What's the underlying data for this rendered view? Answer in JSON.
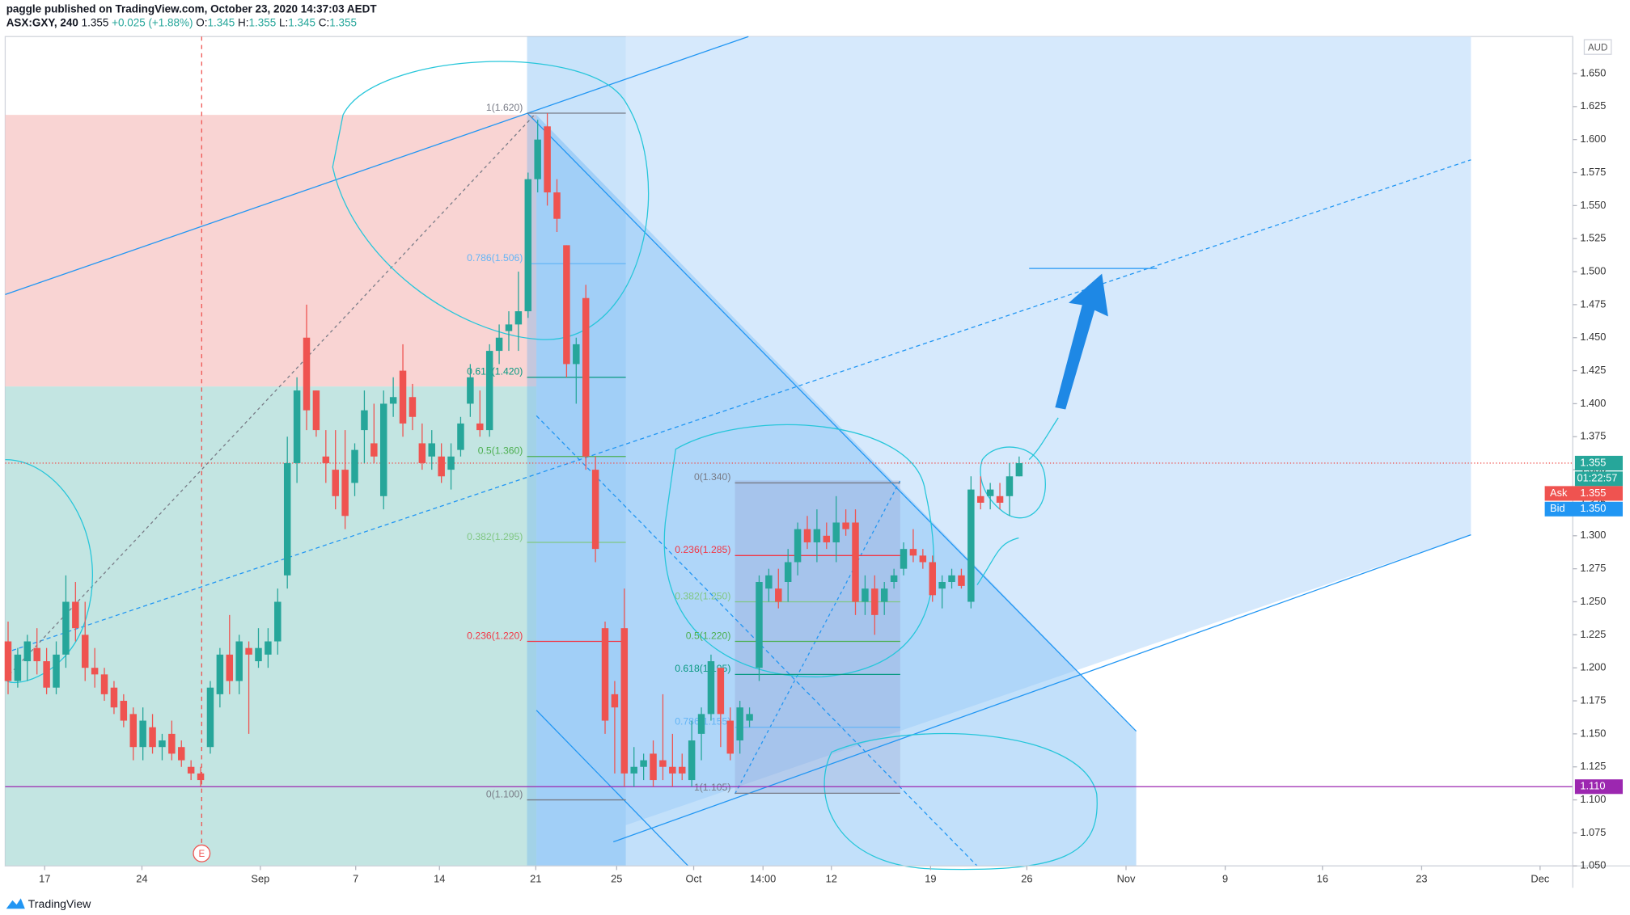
{
  "header": {
    "publisher": "paggle published on TradingView.com, October 23, 2020 14:37:03 AEDT",
    "symbol": "ASX:GXY, 240",
    "last": "1.355",
    "change": "+0.025 (+1.88%)",
    "o_label": "O:",
    "o": "1.345",
    "h_label": "H:",
    "h": "1.355",
    "l_label": "L:",
    "l": "1.345",
    "c_label": "C:",
    "c": "1.355"
  },
  "chart_data": {
    "type": "candlestick",
    "currency": "AUD",
    "up_color": "#26a69a",
    "down_color": "#ef5350",
    "x": [
      0,
      1,
      2,
      3,
      4,
      5,
      6,
      7,
      8,
      9,
      10,
      11,
      12,
      13,
      14,
      15,
      16,
      17,
      18,
      19,
      20,
      21,
      22,
      23,
      24,
      25,
      26,
      27,
      28,
      29,
      30,
      31,
      32,
      33,
      34,
      35,
      36,
      37,
      38,
      39,
      40,
      41,
      42,
      43,
      44,
      45,
      46,
      47,
      48,
      49,
      50,
      51,
      52,
      53,
      54,
      55,
      56,
      57,
      58,
      59,
      60,
      61,
      62,
      63,
      64,
      65,
      66,
      67,
      68,
      69,
      70,
      71,
      72,
      73,
      74,
      75,
      76,
      77,
      78,
      79,
      80,
      81,
      82,
      83,
      84,
      85,
      86,
      87,
      88,
      89,
      90,
      91,
      92,
      93,
      94,
      95,
      96,
      97,
      98,
      99,
      100,
      101,
      102,
      103,
      104,
      105
    ],
    "open": [
      1.22,
      1.19,
      1.205,
      1.215,
      1.205,
      1.185,
      1.21,
      1.25,
      1.225,
      1.2,
      1.195,
      1.185,
      1.175,
      1.165,
      1.14,
      1.155,
      1.14,
      1.15,
      1.14,
      1.125,
      1.12,
      1.14,
      1.18,
      1.21,
      1.19,
      1.215,
      1.205,
      1.21,
      1.22,
      1.27,
      1.355,
      1.45,
      1.41,
      1.36,
      1.35,
      1.35,
      1.34,
      1.38,
      1.37,
      1.33,
      1.4,
      1.425,
      1.405,
      1.37,
      1.36,
      1.36,
      1.35,
      1.365,
      1.4,
      1.385,
      1.38,
      1.44,
      1.455,
      1.46,
      1.47,
      1.57,
      1.61,
      1.56,
      1.52,
      1.43,
      1.48,
      1.35,
      1.23,
      1.18,
      1.23,
      1.12,
      1.125,
      1.135,
      1.13,
      1.125,
      1.125,
      1.115,
      1.15,
      1.165,
      1.2,
      1.16,
      1.145,
      1.16,
      1.2,
      1.26,
      1.26,
      1.265,
      1.28,
      1.305,
      1.295,
      1.3,
      1.295,
      1.31,
      1.31,
      1.25,
      1.26,
      1.25,
      1.265,
      1.275,
      1.29,
      1.285,
      1.28,
      1.26,
      1.265,
      1.27,
      1.25,
      1.33,
      1.33,
      1.33,
      1.33,
      1.345
    ],
    "high": [
      1.235,
      1.215,
      1.225,
      1.23,
      1.215,
      1.22,
      1.27,
      1.265,
      1.25,
      1.215,
      1.2,
      1.19,
      1.18,
      1.17,
      1.17,
      1.165,
      1.15,
      1.16,
      1.145,
      1.13,
      1.125,
      1.19,
      1.215,
      1.24,
      1.225,
      1.22,
      1.23,
      1.23,
      1.26,
      1.375,
      1.42,
      1.475,
      1.41,
      1.38,
      1.38,
      1.38,
      1.37,
      1.41,
      1.4,
      1.41,
      1.42,
      1.445,
      1.415,
      1.385,
      1.38,
      1.37,
      1.37,
      1.39,
      1.43,
      1.41,
      1.445,
      1.46,
      1.47,
      1.5,
      1.575,
      1.615,
      1.62,
      1.57,
      1.52,
      1.45,
      1.49,
      1.36,
      1.235,
      1.19,
      1.26,
      1.14,
      1.135,
      1.145,
      1.18,
      1.15,
      1.135,
      1.16,
      1.17,
      1.21,
      1.2,
      1.17,
      1.175,
      1.17,
      1.27,
      1.275,
      1.275,
      1.29,
      1.31,
      1.315,
      1.32,
      1.31,
      1.33,
      1.32,
      1.32,
      1.27,
      1.27,
      1.265,
      1.275,
      1.295,
      1.305,
      1.29,
      1.285,
      1.27,
      1.275,
      1.275,
      1.345,
      1.345,
      1.34,
      1.34,
      1.355,
      1.36
    ],
    "low": [
      1.18,
      1.185,
      1.19,
      1.195,
      1.18,
      1.18,
      1.2,
      1.22,
      1.19,
      1.185,
      1.175,
      1.165,
      1.155,
      1.13,
      1.13,
      1.135,
      1.13,
      1.13,
      1.125,
      1.115,
      1.11,
      1.135,
      1.17,
      1.18,
      1.18,
      1.15,
      1.2,
      1.2,
      1.21,
      1.26,
      1.34,
      1.38,
      1.375,
      1.34,
      1.32,
      1.305,
      1.33,
      1.355,
      1.355,
      1.32,
      1.39,
      1.375,
      1.38,
      1.35,
      1.35,
      1.34,
      1.335,
      1.36,
      1.39,
      1.375,
      1.375,
      1.43,
      1.44,
      1.44,
      1.465,
      1.56,
      1.55,
      1.53,
      1.42,
      1.4,
      1.35,
      1.28,
      1.15,
      1.12,
      1.11,
      1.11,
      1.115,
      1.11,
      1.115,
      1.11,
      1.115,
      1.11,
      1.13,
      1.16,
      1.14,
      1.13,
      1.135,
      1.155,
      1.19,
      1.25,
      1.245,
      1.25,
      1.27,
      1.29,
      1.28,
      1.29,
      1.28,
      1.3,
      1.24,
      1.24,
      1.225,
      1.24,
      1.26,
      1.27,
      1.28,
      1.275,
      1.25,
      1.245,
      1.26,
      1.26,
      1.245,
      1.32,
      1.32,
      1.32,
      1.315,
      1.345
    ],
    "close": [
      1.19,
      1.21,
      1.22,
      1.205,
      1.185,
      1.21,
      1.25,
      1.23,
      1.2,
      1.195,
      1.18,
      1.17,
      1.16,
      1.14,
      1.16,
      1.14,
      1.145,
      1.135,
      1.13,
      1.12,
      1.115,
      1.185,
      1.21,
      1.19,
      1.22,
      1.21,
      1.215,
      1.22,
      1.25,
      1.355,
      1.41,
      1.395,
      1.38,
      1.355,
      1.33,
      1.315,
      1.365,
      1.395,
      1.36,
      1.4,
      1.405,
      1.385,
      1.39,
      1.355,
      1.37,
      1.345,
      1.36,
      1.385,
      1.42,
      1.38,
      1.44,
      1.45,
      1.46,
      1.47,
      1.57,
      1.6,
      1.56,
      1.54,
      1.43,
      1.445,
      1.36,
      1.29,
      1.16,
      1.17,
      1.12,
      1.125,
      1.13,
      1.115,
      1.125,
      1.12,
      1.12,
      1.145,
      1.165,
      1.205,
      1.165,
      1.135,
      1.17,
      1.165,
      1.265,
      1.27,
      1.25,
      1.28,
      1.305,
      1.295,
      1.305,
      1.295,
      1.31,
      1.305,
      1.25,
      1.26,
      1.24,
      1.26,
      1.27,
      1.29,
      1.285,
      1.28,
      1.255,
      1.265,
      1.27,
      1.262,
      1.335,
      1.325,
      1.335,
      1.325,
      1.345,
      1.355
    ],
    "xlim": [
      -0.3,
      162.5
    ],
    "xticks": [
      {
        "value": 3.8,
        "label": "17"
      },
      {
        "value": 13.9,
        "label": "24"
      },
      {
        "value": 26.2,
        "label": "Sep"
      },
      {
        "value": 36.1,
        "label": "7"
      },
      {
        "value": 44.8,
        "label": "14"
      },
      {
        "value": 54.8,
        "label": "21"
      },
      {
        "value": 63.2,
        "label": "25"
      },
      {
        "value": 71.2,
        "label": "Oct"
      },
      {
        "value": 78.4,
        "label": "14:00"
      },
      {
        "value": 85.5,
        "label": "12"
      },
      {
        "value": 95.8,
        "label": "19"
      },
      {
        "value": 105.8,
        "label": "26"
      },
      {
        "value": 116.1,
        "label": "Nov"
      },
      {
        "value": 126.4,
        "label": "9"
      },
      {
        "value": 136.5,
        "label": "16"
      },
      {
        "value": 146.8,
        "label": "23"
      },
      {
        "value": 159.1,
        "label": "Dec"
      }
    ],
    "ylim": [
      1.05,
      1.678
    ],
    "yticks": [
      {
        "value": 1.05,
        "label": "1.050"
      },
      {
        "value": 1.075,
        "label": "1.075"
      },
      {
        "value": 1.1,
        "label": "1.100"
      },
      {
        "value": 1.125,
        "label": "1.125"
      },
      {
        "value": 1.15,
        "label": "1.150"
      },
      {
        "value": 1.175,
        "label": "1.175"
      },
      {
        "value": 1.2,
        "label": "1.200"
      },
      {
        "value": 1.225,
        "label": "1.225"
      },
      {
        "value": 1.25,
        "label": "1.250"
      },
      {
        "value": 1.275,
        "label": "1.275"
      },
      {
        "value": 1.3,
        "label": "1.300"
      },
      {
        "value": 1.325,
        "label": "1.325"
      },
      {
        "value": 1.35,
        "label": "1.350"
      },
      {
        "value": 1.375,
        "label": "1.375"
      },
      {
        "value": 1.4,
        "label": "1.400"
      },
      {
        "value": 1.425,
        "label": "1.425"
      },
      {
        "value": 1.45,
        "label": "1.450"
      },
      {
        "value": 1.475,
        "label": "1.475"
      },
      {
        "value": 1.5,
        "label": "1.500"
      },
      {
        "value": 1.525,
        "label": "1.525"
      },
      {
        "value": 1.55,
        "label": "1.550"
      },
      {
        "value": 1.575,
        "label": "1.575"
      },
      {
        "value": 1.6,
        "label": "1.600"
      },
      {
        "value": 1.625,
        "label": "1.625"
      },
      {
        "value": 1.65,
        "label": "1.650"
      }
    ],
    "last_price": {
      "value": 1.355,
      "label": "1.355",
      "color": "#26a69a"
    },
    "countdown": "01:22:57",
    "ask": {
      "name": "Ask",
      "value": 1.355,
      "label": "1.355",
      "color": "#ef5350"
    },
    "bid": {
      "name": "Bid",
      "value": 1.35,
      "label": "1.350",
      "color": "#2196f3"
    },
    "level": {
      "value": 1.11,
      "label": "1.110",
      "color": "#9c27b0"
    },
    "fib_a": [
      {
        "value": 1.62,
        "label": "1(1.620)",
        "color": "#787b86"
      },
      {
        "value": 1.506,
        "label": "0.786(1.506)",
        "color": "#64b5f6"
      },
      {
        "value": 1.42,
        "label": "0.618(1.420)",
        "color": "#089981"
      },
      {
        "value": 1.36,
        "label": "0.5(1.360)",
        "color": "#4caf50"
      },
      {
        "value": 1.295,
        "label": "0.382(1.295)",
        "color": "#81c784"
      },
      {
        "value": 1.22,
        "label": "0.236(1.220)",
        "color": "#f23645"
      },
      {
        "value": 1.1,
        "label": "0(1.100)",
        "color": "#787b86"
      }
    ],
    "fib_b": [
      {
        "value": 1.34,
        "label": "0(1.340)",
        "color": "#787b86"
      },
      {
        "value": 1.285,
        "label": "0.236(1.285)",
        "color": "#f23645"
      },
      {
        "value": 1.25,
        "label": "0.382(1.250)",
        "color": "#81c784"
      },
      {
        "value": 1.22,
        "label": "0.5(1.220)",
        "color": "#4caf50"
      },
      {
        "value": 1.195,
        "label": "0.618(1.195)",
        "color": "#089981"
      },
      {
        "value": 1.155,
        "label": "0.786(1.155)",
        "color": "#64b5f6"
      },
      {
        "value": 1.105,
        "label": "1(1.105)",
        "color": "#787b86"
      }
    ],
    "earnings": "E"
  },
  "footer": "TradingView"
}
